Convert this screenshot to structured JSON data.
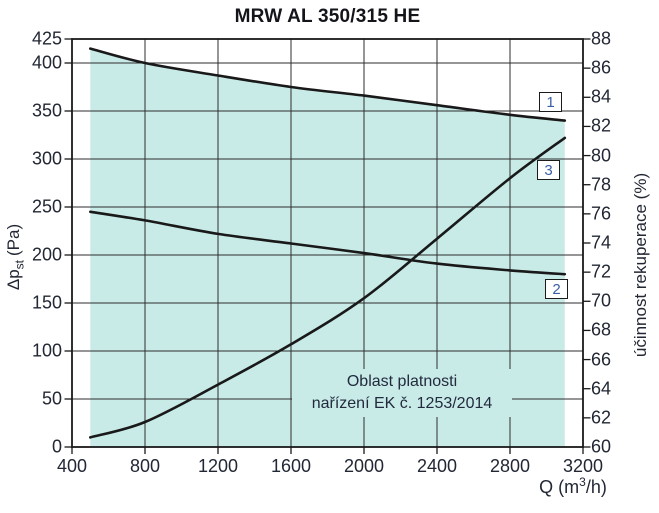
{
  "chart_data": {
    "type": "line",
    "title": "MRW AL 350/315 HE",
    "xlabel": {
      "prefix": "Q (m",
      "sup": "3",
      "suffix": "/h)"
    },
    "ylabel_left": {
      "symbol": "Δp",
      "subscript": "st",
      "unit": "(Pa)"
    },
    "ylabel_right": "účinnost rekuperace (%)",
    "xlim": [
      400,
      3200
    ],
    "ylim_left": [
      0,
      425
    ],
    "ylim_right": [
      60,
      88
    ],
    "x_ticks": [
      400,
      800,
      1200,
      1600,
      2000,
      2400,
      2800,
      3200
    ],
    "y_left_ticks": [
      0,
      50,
      100,
      150,
      200,
      250,
      300,
      350,
      400,
      425
    ],
    "y_right_ticks": [
      60,
      62,
      64,
      66,
      68,
      70,
      72,
      74,
      76,
      78,
      80,
      82,
      84,
      86,
      88
    ],
    "grid": true,
    "x": [
      500,
      800,
      1200,
      1600,
      2000,
      2400,
      2800,
      3100
    ],
    "series": [
      {
        "label": "1",
        "values_pa": [
          415,
          400,
          387,
          375,
          366,
          356,
          346,
          340
        ]
      },
      {
        "label": "2",
        "values_pa": [
          245,
          236,
          222,
          212,
          202,
          191,
          184,
          180
        ],
        "values_pct_right_axis": [
          76.1,
          75.5,
          74.6,
          74.0,
          73.3,
          72.6,
          72.1,
          71.9
        ]
      },
      {
        "label": "3",
        "values_pa": [
          10,
          26,
          65,
          107,
          155,
          217,
          280,
          322
        ]
      }
    ],
    "valid_region": {
      "x_start": 500,
      "x_end": 3100,
      "bounded_above_by_series": "1",
      "label_line1": "Oblast platnosti",
      "label_line2": "nařízení EK č. 1253/2014"
    },
    "colors": {
      "curve": "#191919",
      "grid": "#2e2e2e",
      "region_fill": "#c8ebe8",
      "tick_text": "#222734",
      "curve_label_text": "#3b5ea6"
    }
  }
}
